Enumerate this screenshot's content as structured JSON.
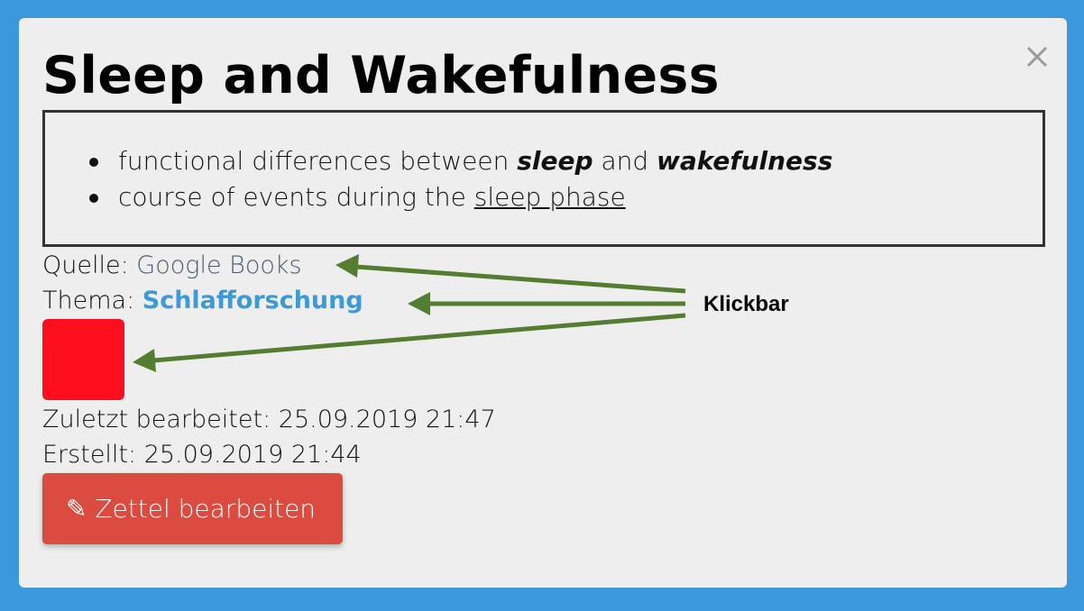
{
  "modal": {
    "title": "Sleep and Wakefulness",
    "close_icon": "close-icon",
    "content": {
      "bullet1": {
        "pre": "functional differences between ",
        "bold1": "sleep",
        "mid": " and ",
        "bold2": "wakefulness"
      },
      "bullet2": {
        "pre": "course of events during the ",
        "underlined": "sleep phase"
      }
    },
    "source_label": "Quelle: ",
    "source_value": "Google Books",
    "topic_label": "Thema: ",
    "topic_value": "Schlafforschung",
    "swatch_color": "#ff0f1e",
    "last_edited_label": "Zuletzt bearbeitet: 25.09.2019 21:47",
    "created_label": "Erstellt: 25.09.2019 21:44",
    "edit_button": {
      "icon": "pencil-icon",
      "glyph": "✎",
      "label": "Zettel bearbeiten"
    }
  },
  "annotation": {
    "label": "Klickbar",
    "arrow_color": "#547d32"
  }
}
